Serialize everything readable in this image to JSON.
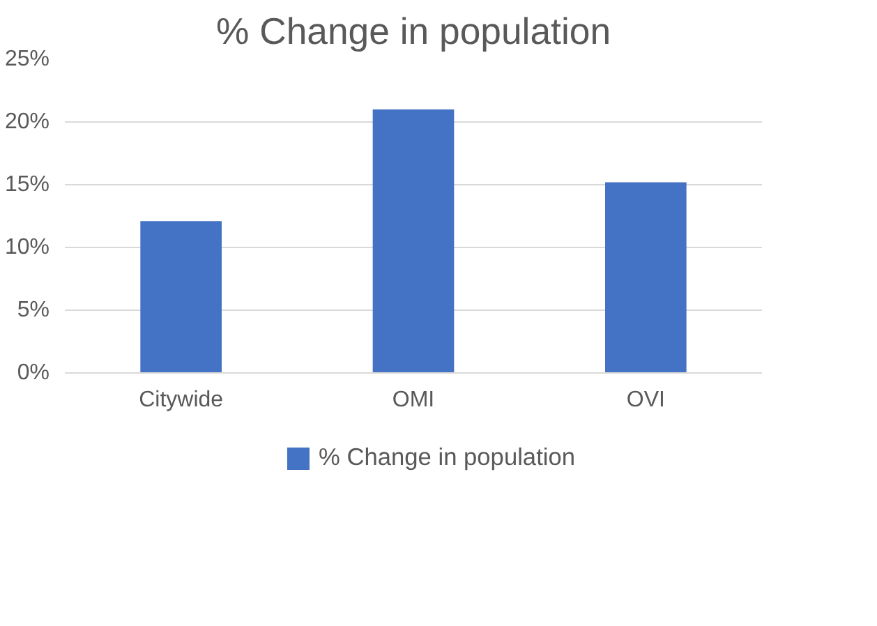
{
  "chart_data": {
    "type": "bar",
    "title": "% Change in population",
    "categories": [
      "Citywide",
      "OMI",
      "OVI"
    ],
    "series": [
      {
        "name": "% Change in population",
        "color": "#4472c4",
        "values": [
          12.1,
          21.0,
          15.2
        ]
      }
    ],
    "ylim": [
      0,
      25
    ],
    "yticks": [
      {
        "value": 0,
        "label": "0%"
      },
      {
        "value": 5,
        "label": "5%"
      },
      {
        "value": 10,
        "label": "10%"
      },
      {
        "value": 15,
        "label": "15%"
      },
      {
        "value": 20,
        "label": "20%"
      },
      {
        "value": 25,
        "label": "25%"
      }
    ],
    "grid": "y",
    "legend": "bottom"
  }
}
